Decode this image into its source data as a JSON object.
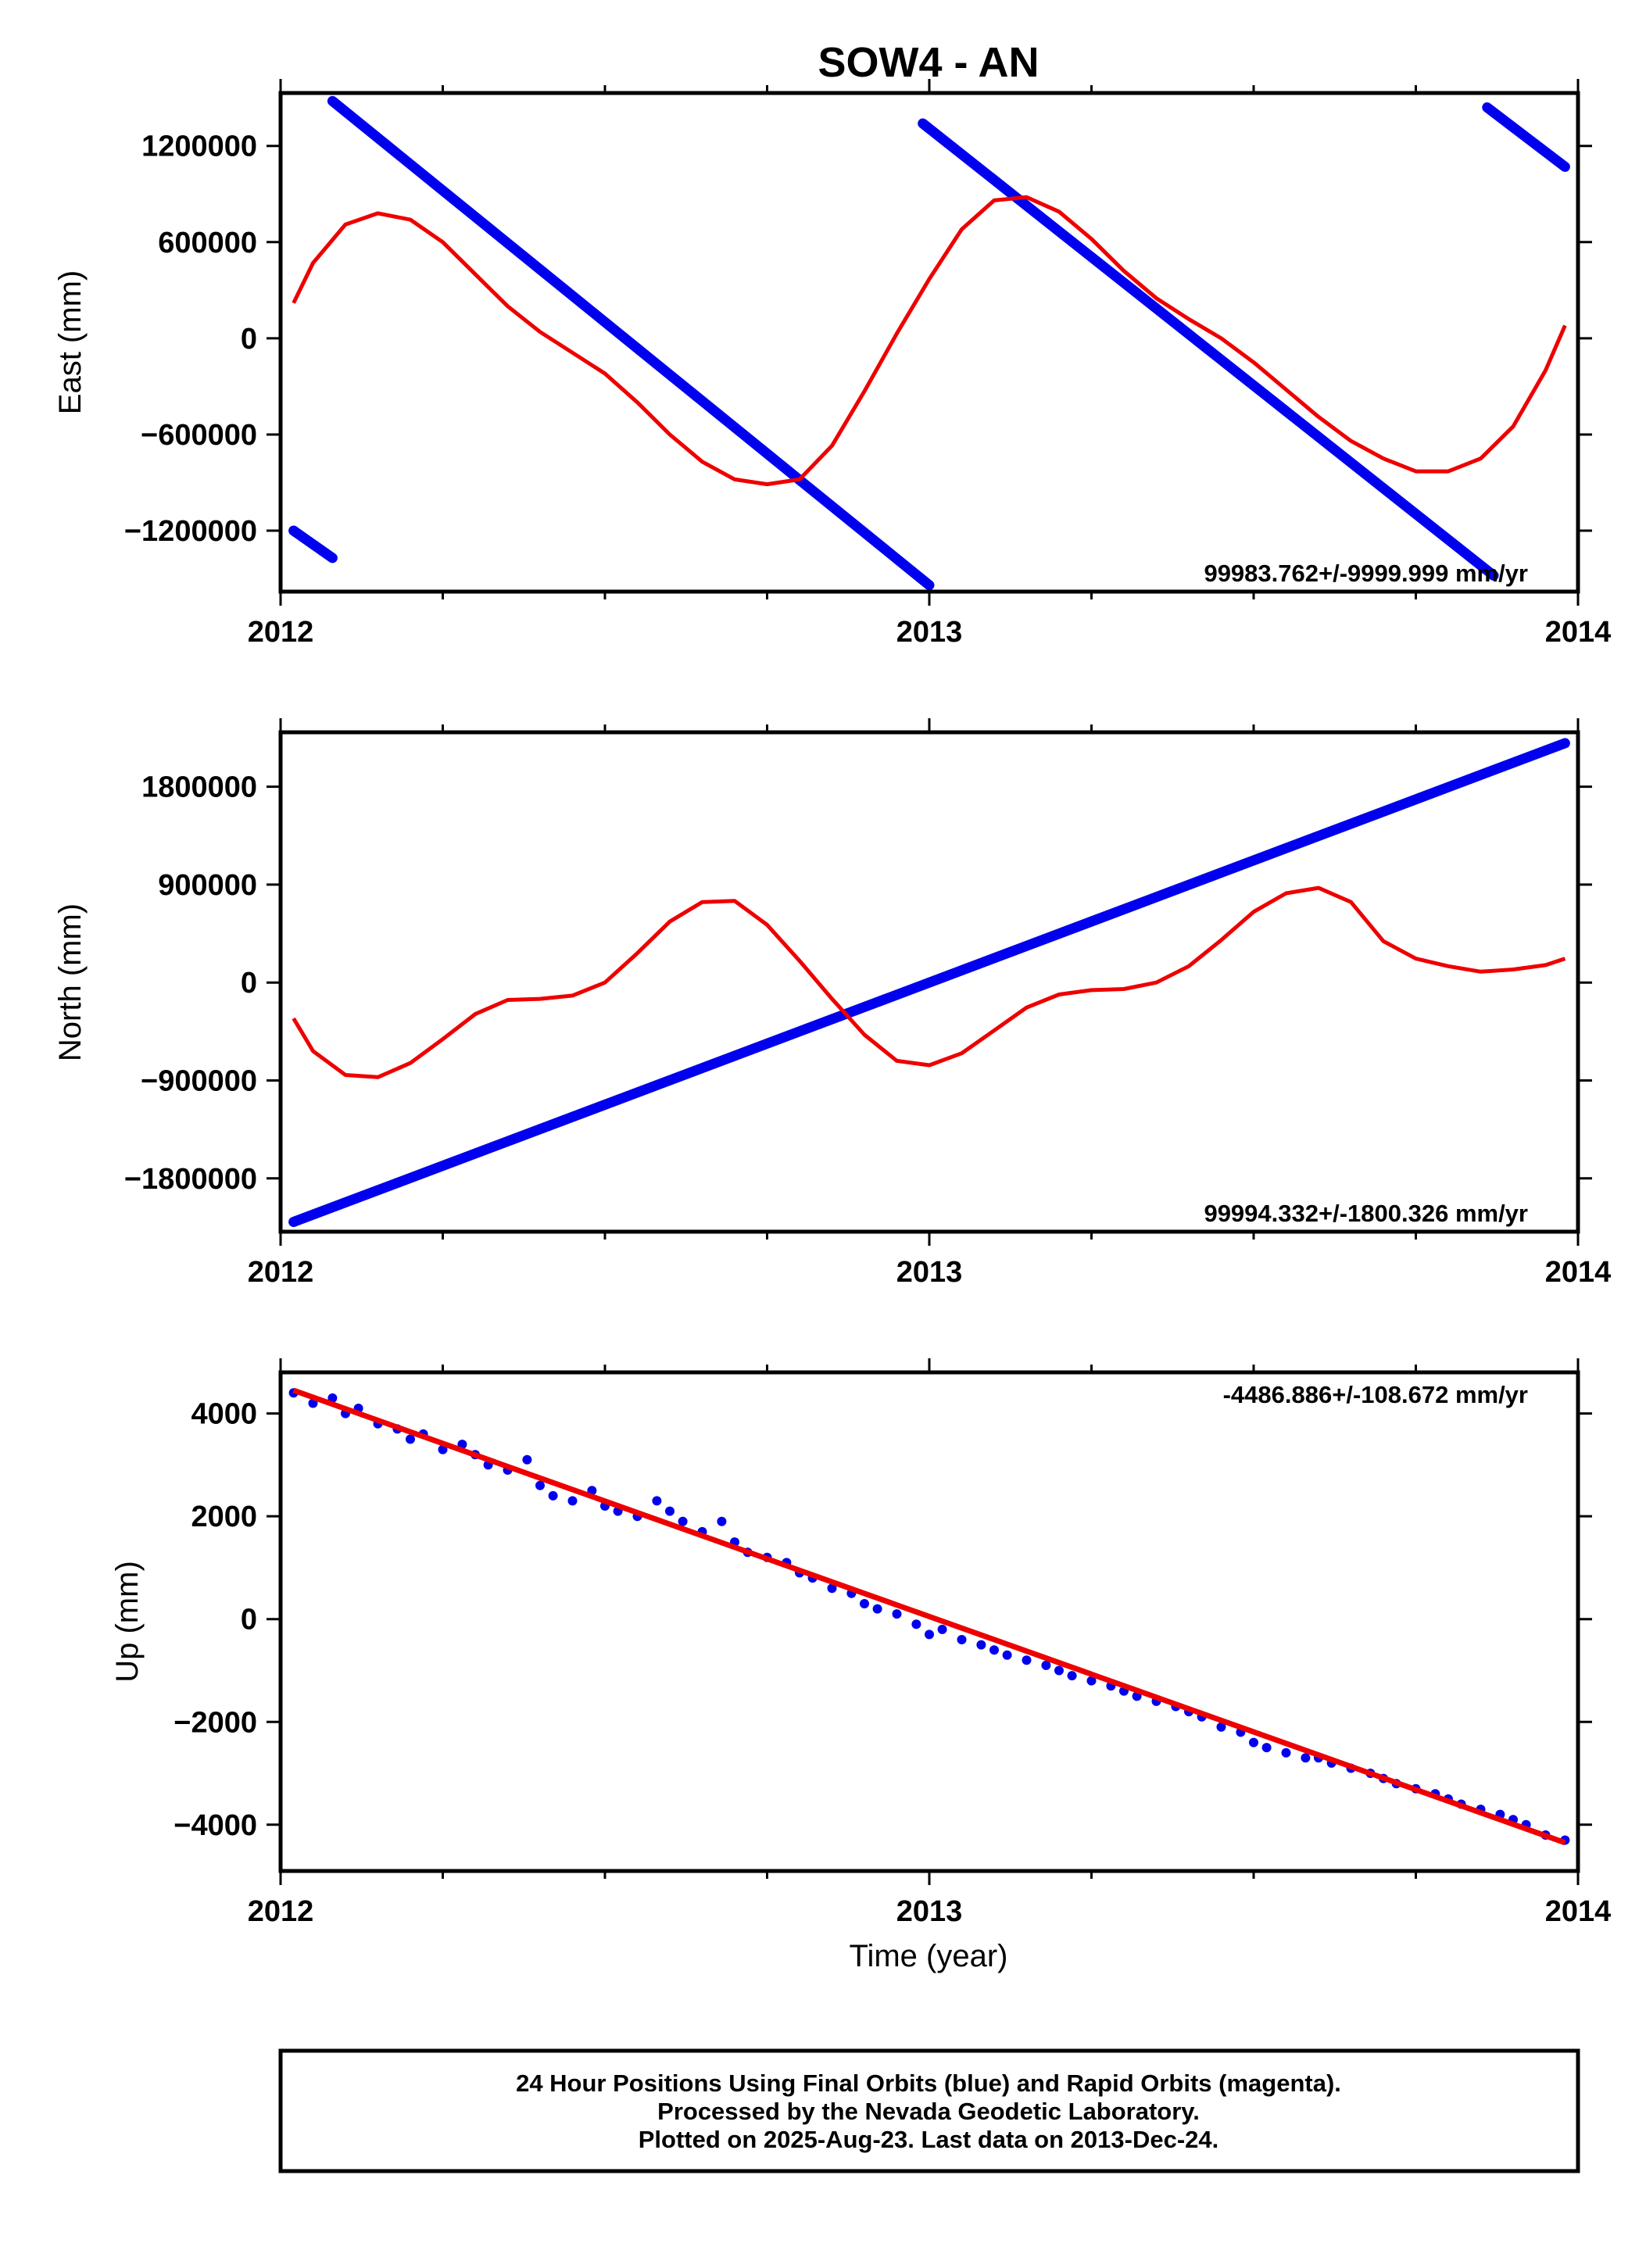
{
  "chart_data": [
    {
      "type": "line",
      "title": "SOW4 - AN",
      "ylabel": "East (mm)",
      "xlabel": "",
      "xlim": [
        2012.0,
        2014.0
      ],
      "ylim": [
        -1580000,
        1530000
      ],
      "x_ticks": [
        {
          "value": 2012,
          "label": "2012"
        },
        {
          "value": 2013,
          "label": "2013"
        },
        {
          "value": 2014,
          "label": "2014"
        }
      ],
      "y_ticks": [
        {
          "value": 1200000,
          "label": "1200000"
        },
        {
          "value": 600000,
          "label": "600000"
        },
        {
          "value": 0,
          "label": "0"
        },
        {
          "value": -600000,
          "label": "−600000"
        },
        {
          "value": -1200000,
          "label": "−1200000"
        }
      ],
      "rate_label": "99983.762+/-9999.999 mm/yr",
      "rate_position": "bottom-right",
      "blue_series": [
        {
          "x": [
            2012.02,
            2012.08
          ],
          "y": [
            -1200000,
            -1370000
          ]
        },
        {
          "x": [
            2012.08,
            2013.0
          ],
          "y": [
            1480000,
            -1540000
          ]
        },
        {
          "x": [
            2012.99,
            2013.87
          ],
          "y": [
            1340000,
            -1480000
          ]
        },
        {
          "x": [
            2013.86,
            2013.98
          ],
          "y": [
            1440000,
            1070000
          ]
        }
      ],
      "red_fit": {
        "x": [
          2012.02,
          2012.05,
          2012.1,
          2012.15,
          2012.2,
          2012.25,
          2012.3,
          2012.35,
          2012.4,
          2012.45,
          2012.5,
          2012.55,
          2012.6,
          2012.65,
          2012.7,
          2012.75,
          2012.8,
          2012.85,
          2012.9,
          2012.95,
          2013.0,
          2013.05,
          2013.1,
          2013.15,
          2013.2,
          2013.25,
          2013.3,
          2013.35,
          2013.4,
          2013.45,
          2013.5,
          2013.55,
          2013.6,
          2013.65,
          2013.7,
          2013.75,
          2013.8,
          2013.85,
          2013.9,
          2013.95,
          2013.98
        ],
        "y": [
          220000,
          470000,
          710000,
          780000,
          740000,
          600000,
          400000,
          200000,
          40000,
          -90000,
          -220000,
          -400000,
          -600000,
          -770000,
          -880000,
          -910000,
          -880000,
          -670000,
          -330000,
          30000,
          370000,
          680000,
          860000,
          880000,
          790000,
          620000,
          420000,
          250000,
          120000,
          0,
          -150000,
          -320000,
          -490000,
          -640000,
          -750000,
          -830000,
          -830000,
          -750000,
          -550000,
          -200000,
          80000
        ]
      }
    },
    {
      "type": "line",
      "title": "",
      "ylabel": "North (mm)",
      "xlabel": "",
      "xlim": [
        2012.0,
        2014.0
      ],
      "ylim": [
        -2290000,
        2300000
      ],
      "x_ticks": [
        {
          "value": 2012,
          "label": "2012"
        },
        {
          "value": 2013,
          "label": "2013"
        },
        {
          "value": 2014,
          "label": "2014"
        }
      ],
      "y_ticks": [
        {
          "value": 1800000,
          "label": "1800000"
        },
        {
          "value": 900000,
          "label": "900000"
        },
        {
          "value": 0,
          "label": "0"
        },
        {
          "value": -900000,
          "label": "−900000"
        },
        {
          "value": -1800000,
          "label": "−1800000"
        }
      ],
      "rate_label": "99994.332+/-1800.326 mm/yr",
      "rate_position": "bottom-right",
      "blue_series": [
        {
          "x": [
            2012.02,
            2013.98
          ],
          "y": [
            -2200000,
            2200000
          ]
        }
      ],
      "red_fit": {
        "x": [
          2012.02,
          2012.05,
          2012.1,
          2012.15,
          2012.2,
          2012.25,
          2012.3,
          2012.35,
          2012.4,
          2012.45,
          2012.5,
          2012.55,
          2012.6,
          2012.65,
          2012.7,
          2012.75,
          2012.8,
          2012.85,
          2012.9,
          2012.95,
          2013.0,
          2013.05,
          2013.1,
          2013.15,
          2013.2,
          2013.25,
          2013.3,
          2013.35,
          2013.4,
          2013.45,
          2013.5,
          2013.55,
          2013.6,
          2013.65,
          2013.7,
          2013.75,
          2013.8,
          2013.85,
          2013.9,
          2013.95,
          2013.98
        ],
        "y": [
          -330000,
          -630000,
          -850000,
          -870000,
          -740000,
          -520000,
          -290000,
          -160000,
          -150000,
          -120000,
          0,
          270000,
          560000,
          740000,
          750000,
          530000,
          200000,
          -150000,
          -480000,
          -720000,
          -760000,
          -650000,
          -440000,
          -230000,
          -110000,
          -70000,
          -60000,
          0,
          150000,
          390000,
          650000,
          820000,
          870000,
          740000,
          380000,
          220000,
          150000,
          100000,
          120000,
          160000,
          220000
        ]
      }
    },
    {
      "type": "scatter",
      "title": "",
      "ylabel": "Up (mm)",
      "xlabel": "Time (year)",
      "xlim": [
        2012.0,
        2014.0
      ],
      "ylim": [
        -4900,
        4800
      ],
      "x_ticks": [
        {
          "value": 2012,
          "label": "2012"
        },
        {
          "value": 2013,
          "label": "2013"
        },
        {
          "value": 2014,
          "label": "2014"
        }
      ],
      "y_ticks": [
        {
          "value": 4000,
          "label": "4000"
        },
        {
          "value": 2000,
          "label": "2000"
        },
        {
          "value": 0,
          "label": "0"
        },
        {
          "value": -2000,
          "label": "−2000"
        },
        {
          "value": -4000,
          "label": "−4000"
        }
      ],
      "rate_label": "-4486.886+/-108.672 mm/yr",
      "rate_position": "top-right",
      "scatter": {
        "x": [
          2012.02,
          2012.05,
          2012.08,
          2012.1,
          2012.12,
          2012.15,
          2012.18,
          2012.2,
          2012.22,
          2012.25,
          2012.28,
          2012.3,
          2012.32,
          2012.35,
          2012.38,
          2012.4,
          2012.42,
          2012.45,
          2012.48,
          2012.5,
          2012.52,
          2012.55,
          2012.58,
          2012.6,
          2012.62,
          2012.65,
          2012.68,
          2012.7,
          2012.72,
          2012.75,
          2012.78,
          2012.8,
          2012.82,
          2012.85,
          2012.88,
          2012.9,
          2012.92,
          2012.95,
          2012.98,
          2013.0,
          2013.02,
          2013.05,
          2013.08,
          2013.1,
          2013.12,
          2013.15,
          2013.18,
          2013.2,
          2013.22,
          2013.25,
          2013.28,
          2013.3,
          2013.32,
          2013.35,
          2013.38,
          2013.4,
          2013.42,
          2013.45,
          2013.48,
          2013.5,
          2013.52,
          2013.55,
          2013.58,
          2013.6,
          2013.62,
          2013.65,
          2013.68,
          2013.7,
          2013.72,
          2013.75,
          2013.78,
          2013.8,
          2013.82,
          2013.85,
          2013.88,
          2013.9,
          2013.92,
          2013.95,
          2013.98
        ],
        "y": [
          4400,
          4200,
          4300,
          4000,
          4100,
          3800,
          3700,
          3500,
          3600,
          3300,
          3400,
          3200,
          3000,
          2900,
          3100,
          2600,
          2400,
          2300,
          2500,
          2200,
          2100,
          2000,
          2300,
          2100,
          1900,
          1700,
          1900,
          1500,
          1300,
          1200,
          1100,
          900,
          800,
          600,
          500,
          300,
          200,
          100,
          -100,
          -300,
          -200,
          -400,
          -500,
          -600,
          -700,
          -800,
          -900,
          -1000,
          -1100,
          -1200,
          -1300,
          -1400,
          -1500,
          -1600,
          -1700,
          -1800,
          -1900,
          -2100,
          -2200,
          -2400,
          -2500,
          -2600,
          -2700,
          -2700,
          -2800,
          -2900,
          -3000,
          -3100,
          -3200,
          -3300,
          -3400,
          -3500,
          -3600,
          -3700,
          -3800,
          -3900,
          -4000,
          -4200,
          -4300
        ]
      },
      "red_fit": {
        "x": [
          2012.02,
          2013.98
        ],
        "y": [
          4450,
          -4350
        ]
      }
    }
  ],
  "caption": {
    "line1": "24 Hour Positions Using Final Orbits (blue) and Rapid Orbits (magenta).",
    "line2": "Processed by the Nevada Geodetic Laboratory.",
    "line3": "Plotted on 2025-Aug-23. Last data on 2013-Dec-24."
  },
  "colors": {
    "final_orbits": "#0000ee",
    "fit": "#ee0000",
    "frame": "#000000"
  }
}
